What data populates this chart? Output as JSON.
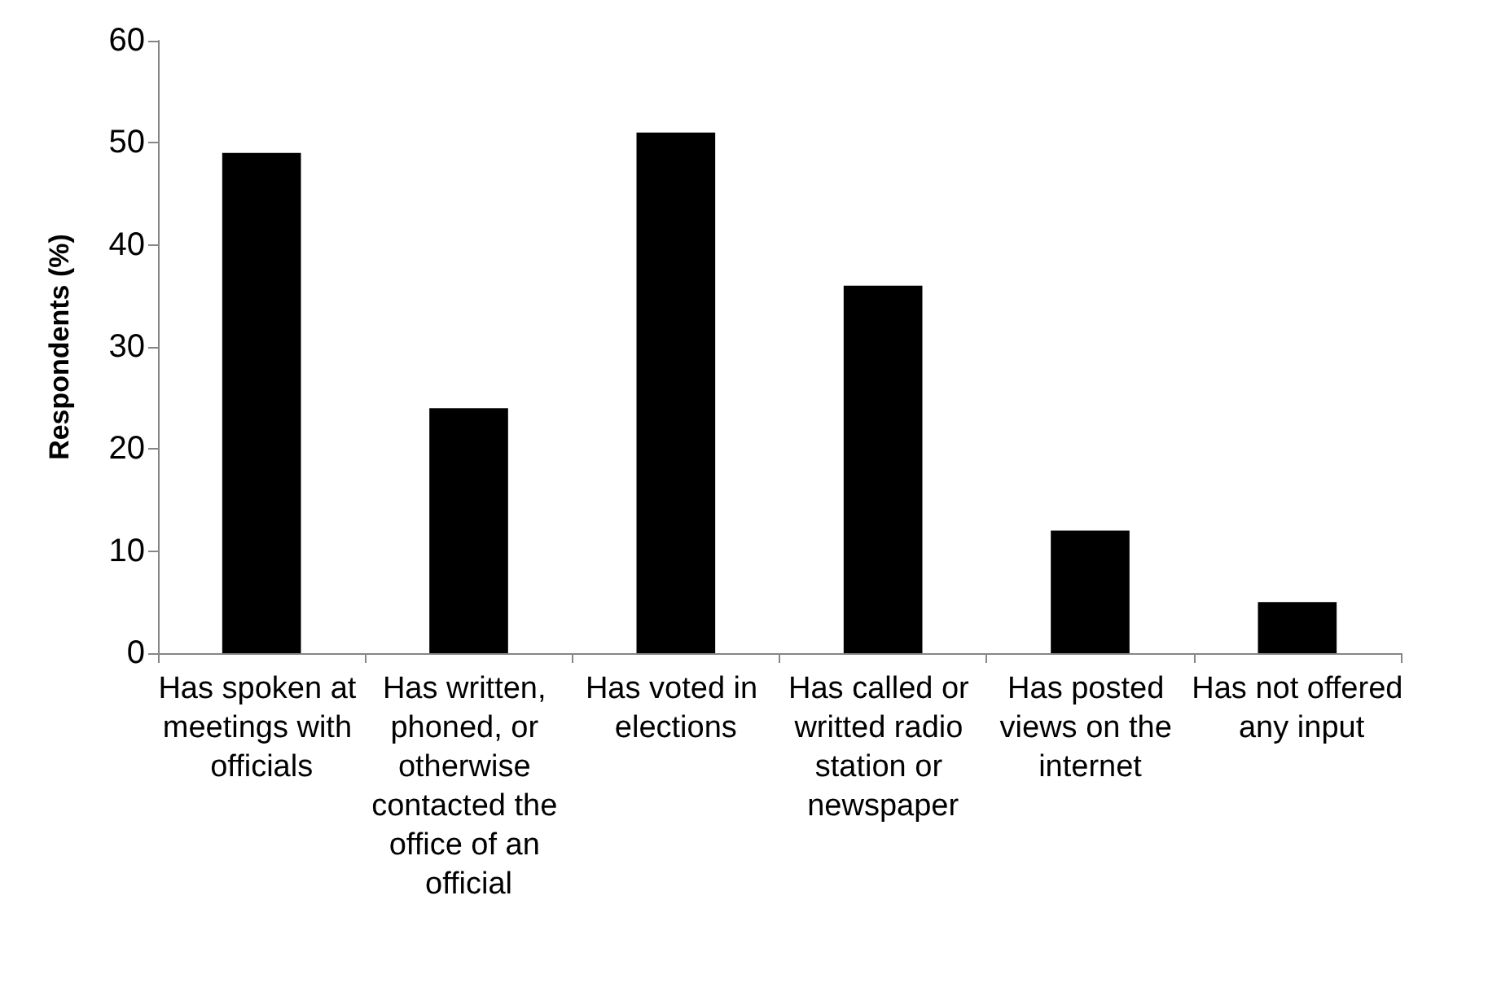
{
  "chart_data": {
    "type": "bar",
    "ylabel": "Respondents (%)",
    "categories": [
      "Has spoken at meetings with officials",
      "Has written, phoned, or otherwise contacted the office of an official",
      "Has voted in elections",
      "Has called or writted radio station or newspaper",
      "Has posted views on the internet",
      "Has not offered any input"
    ],
    "values": [
      49,
      24,
      51,
      36,
      12,
      5
    ],
    "color": "#000000",
    "ylim": [
      0,
      60
    ],
    "yticks": [
      0,
      10,
      20,
      30,
      40,
      50,
      60
    ],
    "grid": false
  }
}
